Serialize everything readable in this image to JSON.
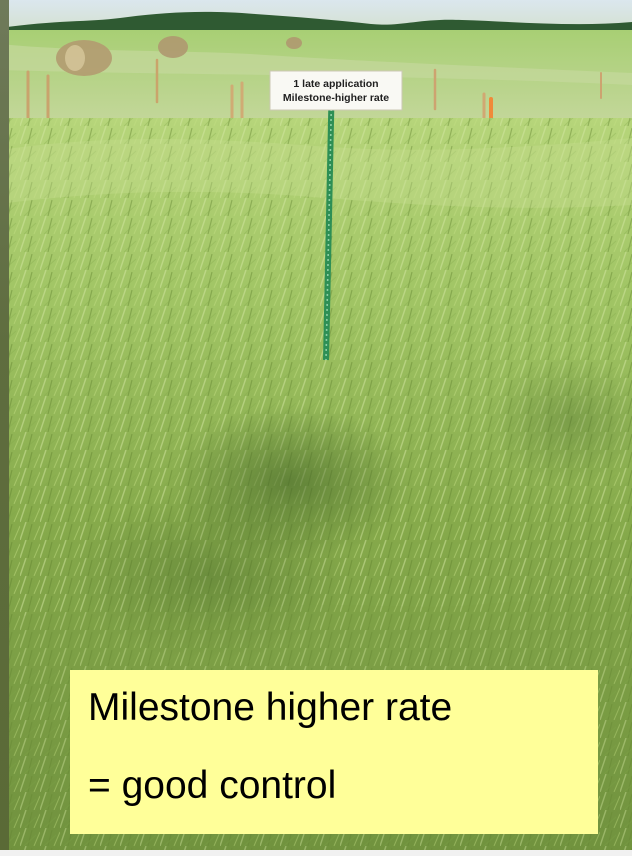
{
  "scene": {
    "sign_text": [
      "1 late application",
      "Milestone-higher rate"
    ],
    "colors": {
      "sky": "#d8e3e8",
      "grass_light": "#aecb6e",
      "grass_dark": "#5f7f2f",
      "tree_line": "#2f5a32",
      "post_green": "#2d8f55",
      "caption_bg": "#ffff99"
    }
  },
  "caption": {
    "line1": "Milestone higher rate",
    "line2": "= good control"
  }
}
